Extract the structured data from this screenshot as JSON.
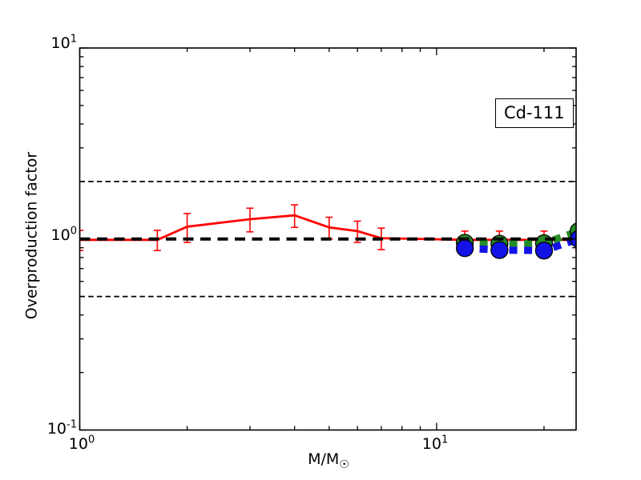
{
  "figure": {
    "annotation": "Cd-111",
    "ylabel": "Overproduction factor",
    "xlabel": {
      "base": "M/M",
      "sub": "☉"
    },
    "x_ticks": [
      {
        "base": "10",
        "exp": "0"
      },
      {
        "base": "10",
        "exp": "1"
      }
    ],
    "y_ticks": [
      {
        "base": "10",
        "exp": "1"
      },
      {
        "base": "10",
        "exp": "0"
      },
      {
        "base": "10",
        "exp": "-1"
      }
    ]
  },
  "chart_data": {
    "type": "line",
    "title": "Cd-111",
    "xlabel": "M/M_sun",
    "ylabel": "Overproduction factor",
    "xscale": "log",
    "yscale": "log",
    "xlim": [
      1,
      24.6
    ],
    "ylim": [
      0.1,
      10
    ],
    "grid": false,
    "legend": "none",
    "x_major_ticks": [
      1,
      10
    ],
    "x_minor_ticks": [
      2,
      3,
      4,
      5,
      6,
      7,
      8,
      9,
      20
    ],
    "y_major_ticks": [
      0.1,
      1,
      10
    ],
    "y_minor_ticks": [
      0.2,
      0.3,
      0.4,
      0.5,
      0.6,
      0.7,
      0.8,
      0.9,
      2,
      3,
      4,
      5,
      6,
      7,
      8,
      9
    ],
    "reference_lines": [
      {
        "y": 2,
        "color": "#000000",
        "style": "dashed",
        "width": 1.8
      },
      {
        "y": 1,
        "color": "#000000",
        "style": "dashed",
        "width": 4
      },
      {
        "y": 0.5,
        "color": "#000000",
        "style": "dashed",
        "width": 1.8
      }
    ],
    "series": [
      {
        "name": "red-errorbar-series",
        "color": "#ff0000",
        "linestyle": "solid",
        "linewidth": 2.8,
        "marker": "none",
        "x": [
          1.0,
          1.65,
          2.0,
          3.0,
          4.0,
          5.0,
          6.0,
          7.0,
          12.0,
          15.0,
          20.0,
          25.0
        ],
        "y": [
          0.99,
          0.99,
          1.16,
          1.27,
          1.33,
          1.15,
          1.1,
          1.01,
          0.99,
          0.99,
          0.99,
          0.99
        ],
        "yerr": [
          0.12,
          0.12,
          0.2,
          0.18,
          0.18,
          0.15,
          0.14,
          0.13,
          0.11,
          0.11,
          0.11,
          0.11
        ]
      },
      {
        "name": "green-circle-series",
        "color": "#278c27",
        "linestyle": "dashed",
        "linewidth": 9,
        "marker": "circle",
        "x": [
          12.0,
          15.0,
          20.0,
          25.0
        ],
        "y": [
          0.955,
          0.945,
          0.95,
          1.1
        ]
      },
      {
        "name": "blue-circle-series",
        "color": "#1313e8",
        "linestyle": "dashed",
        "linewidth": 9,
        "marker": "circle",
        "x": [
          12.0,
          15.0,
          20.0,
          25.0
        ],
        "y": [
          0.895,
          0.875,
          0.87,
          1.0
        ]
      }
    ]
  }
}
